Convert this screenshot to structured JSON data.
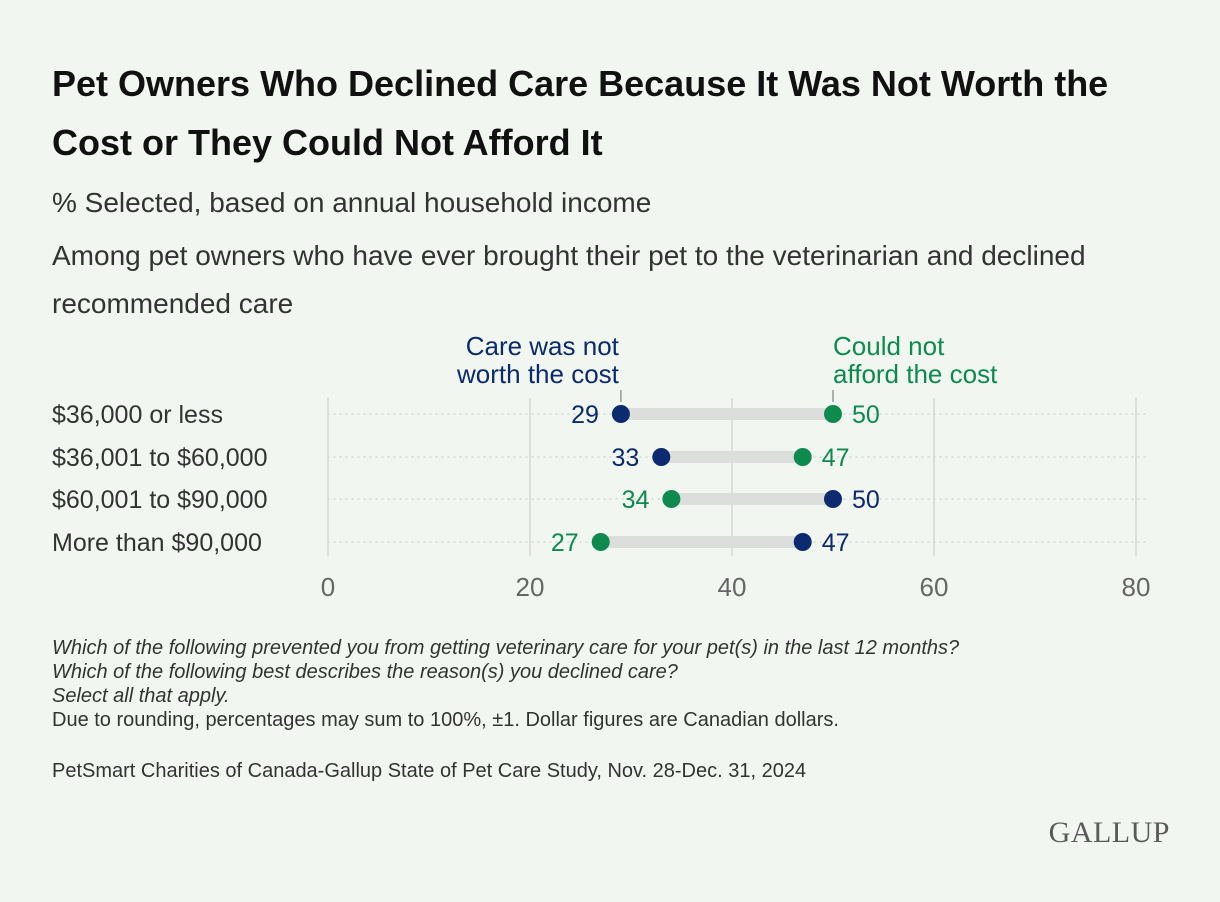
{
  "title": "Pet Owners Who Declined Care Because It Was Not Worth the Cost or They Could Not Afford It",
  "subtitle": "% Selected, based on annual household income",
  "population_note": "Among pet owners who have ever brought their pet to the veterinarian and declined recommended care",
  "footnotes": {
    "q1": "Which of the following prevented you from getting veterinary care for your pet(s) in the last 12 months?",
    "q2": "Which of the following best describes the reason(s) you declined care?",
    "q3": "Select all that apply.",
    "rounding": "Due to rounding, percentages may sum to 100%, ±1. Dollar figures are Canadian dollars."
  },
  "source": "PetSmart Charities of Canada-Gallup State of Pet Care Study, Nov. 28-Dec. 31, 2024",
  "logo": "GALLUP",
  "colors": {
    "not_worth": "#0b2a6f",
    "could_not_afford": "#0e8a4f",
    "connector": "#dcdedb",
    "grid": "#d4d8d3",
    "axis_label": "#666666"
  },
  "chart_data": {
    "type": "dot-plot",
    "xlim": [
      0,
      80
    ],
    "xticks": [
      0,
      20,
      40,
      60,
      80
    ],
    "categories": [
      "$36,000 or less",
      "$36,001 to $60,000",
      "$60,001 to $90,000",
      "More than $90,000"
    ],
    "series": [
      {
        "name": "Care was not worth the cost",
        "label_lines": [
          "Care was not",
          "worth the cost"
        ],
        "color": "#0b2a6f",
        "values": [
          29,
          33,
          50,
          47
        ]
      },
      {
        "name": "Could not afford the cost",
        "label_lines": [
          "Could not",
          "afford the cost"
        ],
        "color": "#0e8a4f",
        "values": [
          50,
          47,
          34,
          27
        ]
      }
    ]
  }
}
